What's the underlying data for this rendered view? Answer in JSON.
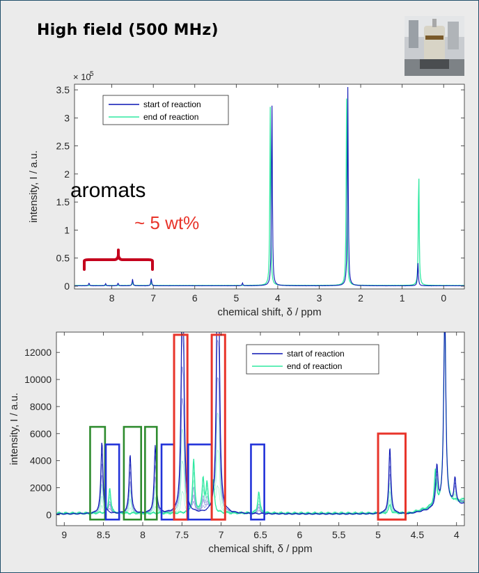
{
  "header": {
    "title": "High field (500 MHz)",
    "photo_icon": "nmr-spectrometer-photo"
  },
  "colors": {
    "start": "#0a14b4",
    "end": "#2ee8a0",
    "red_box": "#e8342a",
    "blue_box": "#2233d9",
    "green_box": "#2e8b2e",
    "brace": "#c4001c",
    "note_red": "#e8342a"
  },
  "chart_data": [
    {
      "type": "line",
      "exponent_label": "× 10",
      "exponent_power": "5",
      "xlabel": "chemical shift,  δ / ppm",
      "ylabel": "intensity,  I / a.u.",
      "x_reversed": true,
      "xlim": [
        -0.5,
        8.9
      ],
      "ylim": [
        -0.05,
        3.6
      ],
      "y_scale": 100000,
      "x_ticks": [
        8,
        7,
        6,
        5,
        4,
        3,
        2,
        1,
        0
      ],
      "y_ticks": [
        0,
        0.5,
        1,
        1.5,
        2,
        2.5,
        3,
        3.5
      ],
      "y_tick_labels": [
        "0",
        "0.5",
        "1",
        "1.5",
        "2",
        "2.5",
        "3",
        "3.5"
      ],
      "legend": {
        "position": "top-left",
        "entries": [
          "start of reaction",
          "end of reaction"
        ]
      },
      "series": [
        {
          "name": "start of reaction",
          "peaks": [
            {
              "x": 4.14,
              "y": 3.37
            },
            {
              "x": 2.31,
              "y": 3.55
            },
            {
              "x": 0.62,
              "y": 0.42
            },
            {
              "x": 8.55,
              "y": 0.05
            },
            {
              "x": 8.15,
              "y": 0.04
            },
            {
              "x": 7.85,
              "y": 0.05
            },
            {
              "x": 7.5,
              "y": 0.12
            },
            {
              "x": 7.05,
              "y": 0.13
            },
            {
              "x": 4.85,
              "y": 0.05
            }
          ]
        },
        {
          "name": "end of reaction",
          "peaks": [
            {
              "x": 4.18,
              "y": 3.2
            },
            {
              "x": 2.34,
              "y": 3.35
            },
            {
              "x": 0.6,
              "y": 2.05
            },
            {
              "x": 7.5,
              "y": 0.06
            },
            {
              "x": 7.05,
              "y": 0.06
            }
          ]
        }
      ],
      "annotations": {
        "aromats": "aromats",
        "wt": "~ 5 wt%"
      }
    },
    {
      "type": "line",
      "xlabel": "chemical shift,  δ / ppm",
      "ylabel": "intensity,  I / a.u.",
      "x_reversed": true,
      "xlim": [
        3.9,
        9.1
      ],
      "ylim": [
        -800,
        13500
      ],
      "x_ticks": [
        9,
        8.5,
        8,
        7.5,
        7,
        6.5,
        6,
        5.5,
        5,
        4.5,
        4
      ],
      "x_tick_labels": [
        "9",
        "8.5",
        "8",
        "7.5",
        "7",
        "6.5",
        "6",
        "5.5",
        "5",
        "4.5",
        "4"
      ],
      "y_ticks": [
        0,
        2000,
        4000,
        6000,
        8000,
        10000,
        12000
      ],
      "y_tick_labels": [
        "0",
        "2000",
        "4000",
        "6000",
        "8000",
        "10000",
        "12000"
      ],
      "legend": {
        "position": "top-right",
        "entries": [
          "start of reaction",
          "end of reaction"
        ]
      },
      "series": [
        {
          "name": "start of reaction",
          "peaks": [
            {
              "x": 8.52,
              "y": 5300
            },
            {
              "x": 8.16,
              "y": 4400
            },
            {
              "x": 7.84,
              "y": 5000
            },
            {
              "x": 7.5,
              "y": 11500
            },
            {
              "x": 7.48,
              "y": 9500
            },
            {
              "x": 7.05,
              "y": 13000
            },
            {
              "x": 7.03,
              "y": 12000
            },
            {
              "x": 4.85,
              "y": 4900
            },
            {
              "x": 4.25,
              "y": 3000
            },
            {
              "x": 4.15,
              "y": 14500
            },
            {
              "x": 4.02,
              "y": 2000
            }
          ]
        },
        {
          "name": "end of reaction",
          "peaks": [
            {
              "x": 8.42,
              "y": 1900
            },
            {
              "x": 7.35,
              "y": 3900
            },
            {
              "x": 7.23,
              "y": 2500
            },
            {
              "x": 7.18,
              "y": 2000
            },
            {
              "x": 7.1,
              "y": 2300
            },
            {
              "x": 6.52,
              "y": 1600
            },
            {
              "x": 4.85,
              "y": 600
            },
            {
              "x": 4.27,
              "y": 2500
            },
            {
              "x": 4.15,
              "y": 14500
            }
          ]
        }
      ],
      "highlight_boxes": [
        {
          "color": "green",
          "x_from": 8.67,
          "x_to": 8.48,
          "y_from": -350,
          "y_to": 6500
        },
        {
          "color": "blue",
          "x_from": 8.47,
          "x_to": 8.3,
          "y_from": -350,
          "y_to": 5200
        },
        {
          "color": "green",
          "x_from": 8.24,
          "x_to": 8.02,
          "y_from": -350,
          "y_to": 6500
        },
        {
          "color": "green",
          "x_from": 7.97,
          "x_to": 7.82,
          "y_from": -350,
          "y_to": 6500
        },
        {
          "color": "blue",
          "x_from": 7.76,
          "x_to": 7.6,
          "y_from": -350,
          "y_to": 5200
        },
        {
          "color": "red",
          "x_from": 7.6,
          "x_to": 7.43,
          "y_from": -350,
          "y_to": 13300
        },
        {
          "color": "blue",
          "x_from": 7.42,
          "x_to": 7.12,
          "y_from": -350,
          "y_to": 5200
        },
        {
          "color": "red",
          "x_from": 7.12,
          "x_to": 6.95,
          "y_from": -350,
          "y_to": 13300
        },
        {
          "color": "blue",
          "x_from": 6.62,
          "x_to": 6.45,
          "y_from": -350,
          "y_to": 5200
        },
        {
          "color": "red",
          "x_from": 5.0,
          "x_to": 4.65,
          "y_from": -350,
          "y_to": 6000
        }
      ]
    }
  ]
}
